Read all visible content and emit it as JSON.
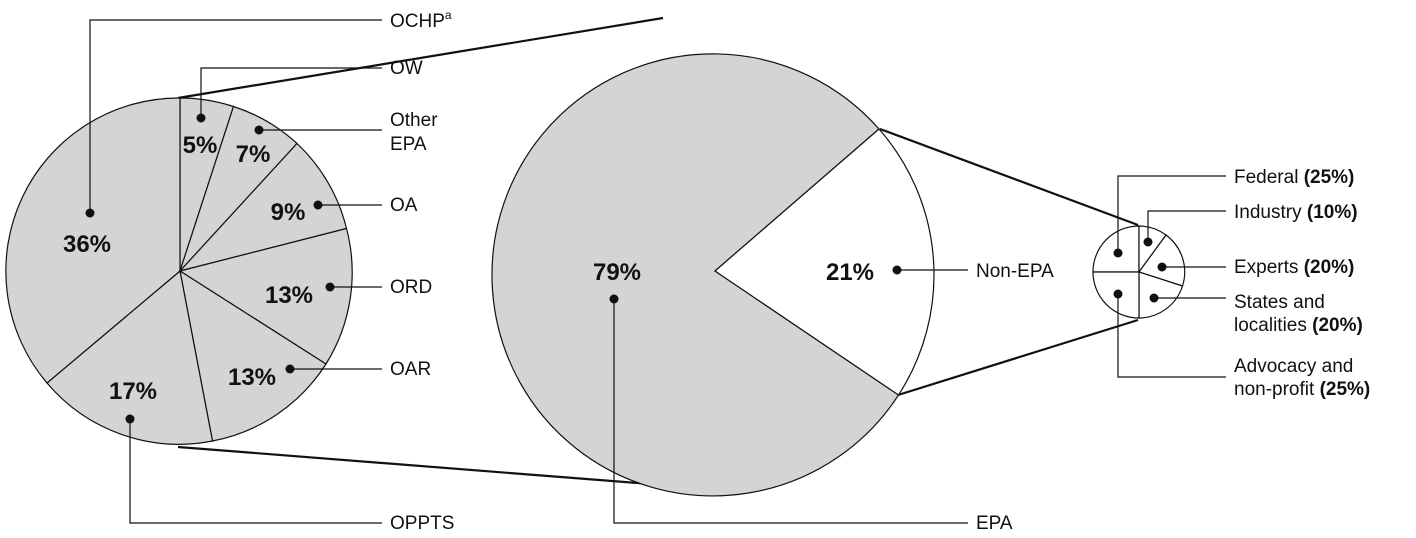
{
  "colors": {
    "shaded": "#d4d4d6",
    "unshaded": "#ffffff",
    "ink": "#111111"
  },
  "chart_data": [
    {
      "type": "pie",
      "name": "epa_breakdown",
      "slices": [
        {
          "label": "OW",
          "value": 5,
          "label_text": "5%"
        },
        {
          "label": "Other EPA",
          "value": 7,
          "label_text": "7%"
        },
        {
          "label": "OA",
          "value": 9,
          "label_text": "9%"
        },
        {
          "label": "ORD",
          "value": 13,
          "label_text": "13%"
        },
        {
          "label": "OAR",
          "value": 13,
          "label_text": "13%"
        },
        {
          "label": "OPPTS",
          "value": 17,
          "label_text": "17%"
        },
        {
          "label": "OCHP",
          "superscript": "a",
          "value": 36,
          "label_text": "36%"
        }
      ]
    },
    {
      "type": "pie",
      "name": "overall",
      "slices": [
        {
          "label": "EPA",
          "value": 79,
          "label_text": "79%"
        },
        {
          "label": "Non-EPA",
          "value": 21,
          "label_text": "21%"
        }
      ]
    },
    {
      "type": "pie",
      "name": "non_epa_breakdown",
      "slices": [
        {
          "label": "Federal",
          "value": 25,
          "label_text": "(25%)"
        },
        {
          "label": "Industry",
          "value": 10,
          "label_text": "(10%)"
        },
        {
          "label": "Experts",
          "value": 20,
          "label_text": "(20%)"
        },
        {
          "label_lines": [
            "States and",
            "localities"
          ],
          "value": 20,
          "label_text": "(20%)"
        },
        {
          "label_lines": [
            "Advocacy and",
            "non-profit"
          ],
          "value": 25,
          "label_text": "(25%)"
        }
      ]
    }
  ]
}
